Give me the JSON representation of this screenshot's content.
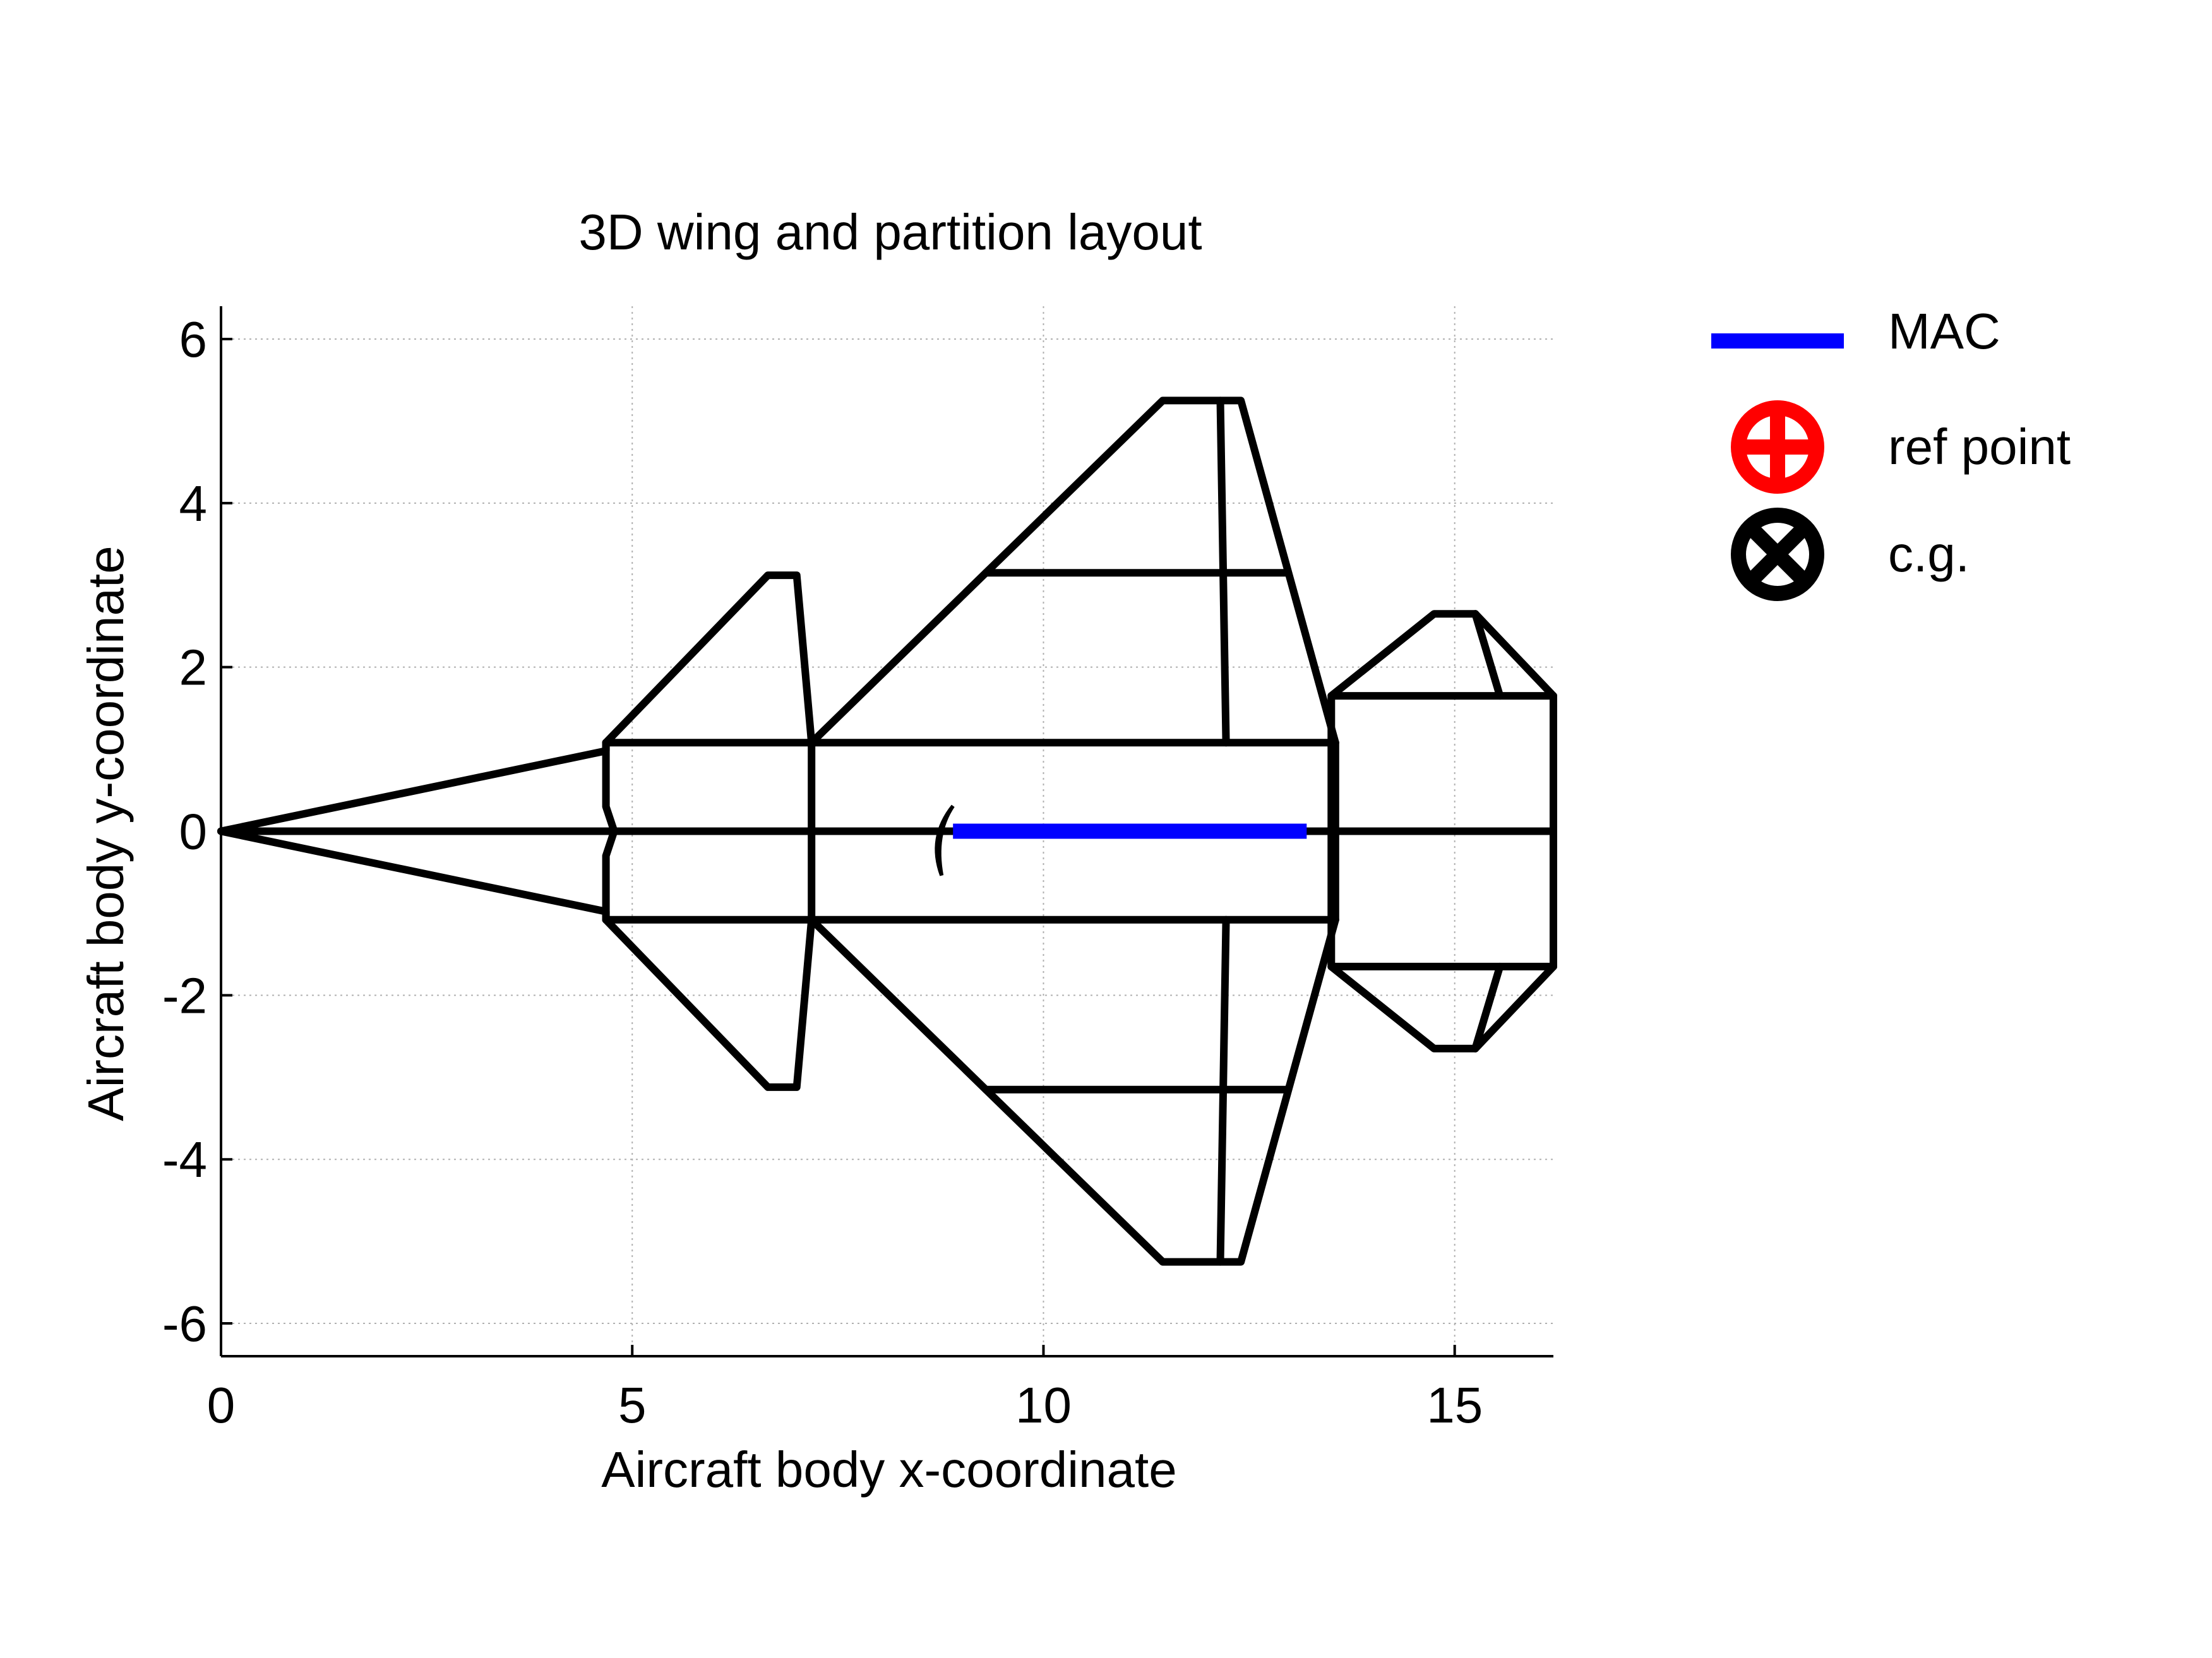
{
  "chart_data": {
    "type": "line",
    "title": "3D wing and partition layout",
    "xlabel": "Aircraft body x-coordinate",
    "ylabel": "Aircraft body y-coordinate",
    "xlim": [
      0,
      16.2
    ],
    "ylim": [
      -6.4,
      6.4
    ],
    "xticks": [
      0,
      5,
      10,
      15
    ],
    "yticks": [
      6,
      4,
      2,
      0,
      -2,
      -4,
      -6
    ],
    "xtick_labels": [
      "0",
      "5",
      "10",
      "15"
    ],
    "ytick_labels": [
      "6",
      "4",
      "2",
      "0",
      "-2",
      "-4",
      "-6"
    ],
    "grid": true,
    "legend_position": "outside-right",
    "legend": [
      {
        "label": "MAC",
        "symbol": "line",
        "color": "#0000ff"
      },
      {
        "label": "ref point",
        "symbol": "circle-plus",
        "color": "#ff0000"
      },
      {
        "label": "c.g.",
        "symbol": "circle-x",
        "color": "#000000"
      }
    ],
    "series": [
      {
        "name": "MAC",
        "color": "#0000ff",
        "x": [
          8.9,
          13.2
        ],
        "y": [
          0,
          0
        ]
      }
    ],
    "outline_segments": [
      [
        [
          0,
          0
        ],
        [
          4.68,
          0.98
        ],
        [
          4.68,
          1.08
        ]
      ],
      [
        [
          0,
          0
        ],
        [
          4.68,
          -0.98
        ],
        [
          4.68,
          -1.08
        ]
      ],
      [
        [
          0,
          0
        ],
        [
          16.2,
          0
        ]
      ],
      [
        [
          4.68,
          1.08
        ],
        [
          13.55,
          1.08
        ]
      ],
      [
        [
          4.68,
          -1.08
        ],
        [
          13.55,
          -1.08
        ]
      ],
      [
        [
          4.68,
          1.08
        ],
        [
          4.68,
          0.3
        ],
        [
          4.78,
          0
        ],
        [
          4.68,
          -0.3
        ],
        [
          4.68,
          -1.08
        ]
      ],
      [
        [
          4.68,
          1.08
        ],
        [
          6.65,
          3.12
        ],
        [
          7.0,
          3.12
        ],
        [
          7.18,
          1.08
        ]
      ],
      [
        [
          4.68,
          -1.08
        ],
        [
          6.65,
          -3.12
        ],
        [
          7.0,
          -3.12
        ],
        [
          7.18,
          -1.08
        ]
      ],
      [
        [
          7.18,
          1.08
        ],
        [
          7.18,
          -1.08
        ]
      ],
      [
        [
          7.18,
          1.08
        ],
        [
          11.45,
          5.25
        ],
        [
          12.4,
          5.25
        ],
        [
          13.55,
          1.08
        ]
      ],
      [
        [
          7.18,
          -1.08
        ],
        [
          11.45,
          -5.25
        ],
        [
          12.4,
          -5.25
        ],
        [
          13.55,
          -1.08
        ]
      ],
      [
        [
          9.3,
          3.15
        ],
        [
          12.95,
          3.15
        ]
      ],
      [
        [
          9.3,
          -3.15
        ],
        [
          12.95,
          -3.15
        ]
      ],
      [
        [
          12.15,
          5.25
        ],
        [
          12.22,
          1.08
        ]
      ],
      [
        [
          12.15,
          -5.25
        ],
        [
          12.22,
          -1.08
        ]
      ],
      [
        [
          13.55,
          1.08
        ],
        [
          13.55,
          -1.08
        ]
      ],
      [
        [
          13.5,
          1.65
        ],
        [
          16.2,
          1.65
        ],
        [
          16.2,
          -1.65
        ],
        [
          13.5,
          -1.65
        ],
        [
          13.5,
          1.65
        ]
      ],
      [
        [
          13.5,
          1.65
        ],
        [
          14.75,
          2.65
        ],
        [
          15.25,
          2.65
        ],
        [
          16.2,
          1.65
        ]
      ],
      [
        [
          13.5,
          -1.65
        ],
        [
          14.75,
          -2.65
        ],
        [
          15.25,
          -2.65
        ],
        [
          16.2,
          -1.65
        ]
      ],
      [
        [
          15.25,
          2.65
        ],
        [
          15.55,
          1.65
        ]
      ],
      [
        [
          15.25,
          -2.65
        ],
        [
          15.55,
          -1.65
        ]
      ]
    ],
    "markers": [
      {
        "name": "ref point",
        "x": 8.9,
        "y": 0.0,
        "color": "#000000",
        "symbol": "half-moon"
      }
    ]
  }
}
